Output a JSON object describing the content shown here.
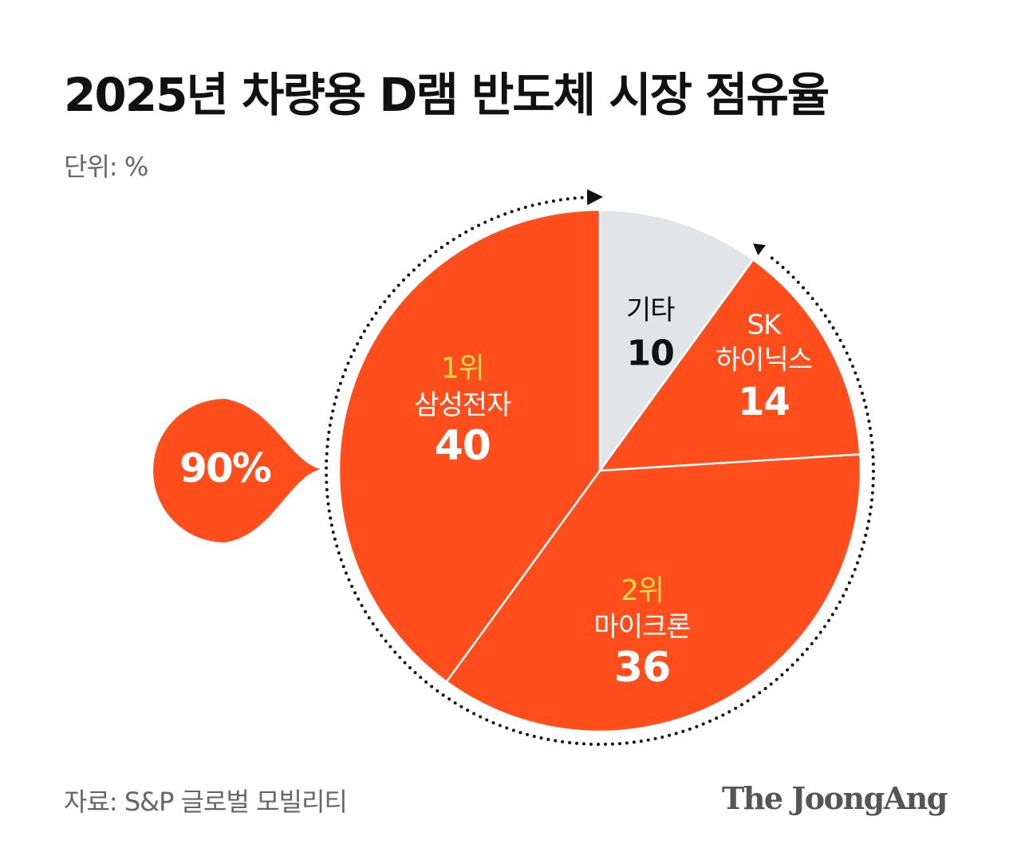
{
  "title": "2025년 차량용 D램 반도체 시장 점유율",
  "unit_label": "단위: %",
  "source": "자료: S&P 글로벌 모빌리티",
  "logo": "The JoongAng",
  "colors": {
    "accent": "#ff4d1c",
    "others": "#e2e5e8",
    "rank": "#ffd94a",
    "dark_text": "#111111",
    "light_text": "#ffffff"
  },
  "chart_data": {
    "type": "pie",
    "unit": "%",
    "slices": [
      {
        "rank": "",
        "label": "기타",
        "value": 10,
        "color": "#e2e5e8"
      },
      {
        "rank": "",
        "label": "SK\n하이닉스",
        "value": 14,
        "color": "#ff4d1c"
      },
      {
        "rank": "2위",
        "label": "마이크론",
        "value": 36,
        "color": "#ff4d1c"
      },
      {
        "rank": "1위",
        "label": "삼성전자",
        "value": 40,
        "color": "#ff4d1c"
      }
    ],
    "annotation": {
      "text": "90%",
      "covers": [
        "SK\n하이닉스",
        "마이크론",
        "삼성전자"
      ]
    }
  }
}
